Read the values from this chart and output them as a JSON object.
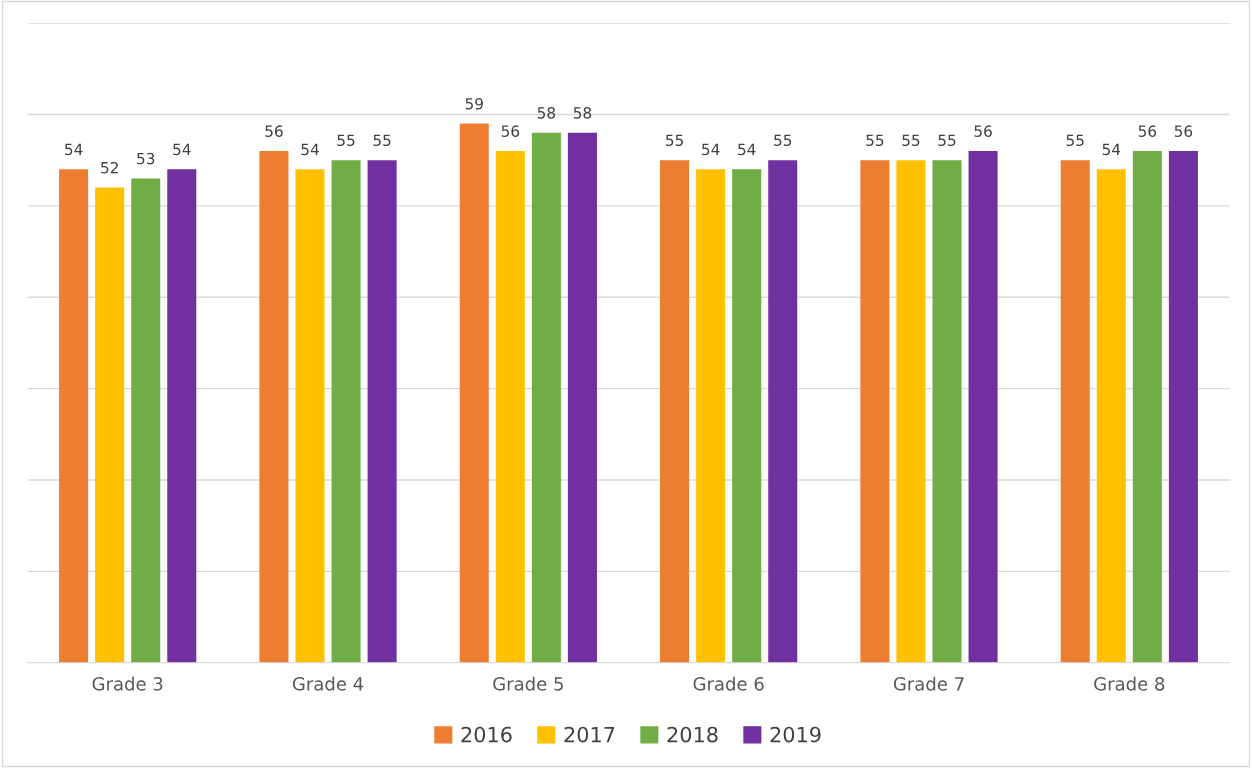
{
  "chart_data": {
    "type": "bar",
    "categories": [
      "Grade 3",
      "Grade 4",
      "Grade 5",
      "Grade 6",
      "Grade 7",
      "Grade 8"
    ],
    "series": [
      {
        "name": "2016",
        "color": "#ed7d31",
        "values": [
          54,
          56,
          59,
          55,
          55,
          55
        ]
      },
      {
        "name": "2017",
        "color": "#ffc000",
        "values": [
          52,
          54,
          56,
          54,
          55,
          54
        ]
      },
      {
        "name": "2018",
        "color": "#70ad47",
        "values": [
          53,
          55,
          58,
          54,
          55,
          56
        ]
      },
      {
        "name": "2019",
        "color": "#7030a0",
        "values": [
          54,
          55,
          58,
          55,
          56,
          56
        ]
      }
    ],
    "ylim": [
      0,
      70
    ],
    "yticks": [
      0,
      10,
      20,
      30,
      40,
      50,
      60,
      70
    ],
    "tick_labels": "x",
    "grid": "y",
    "legend": "bottom",
    "data_labels": true
  }
}
